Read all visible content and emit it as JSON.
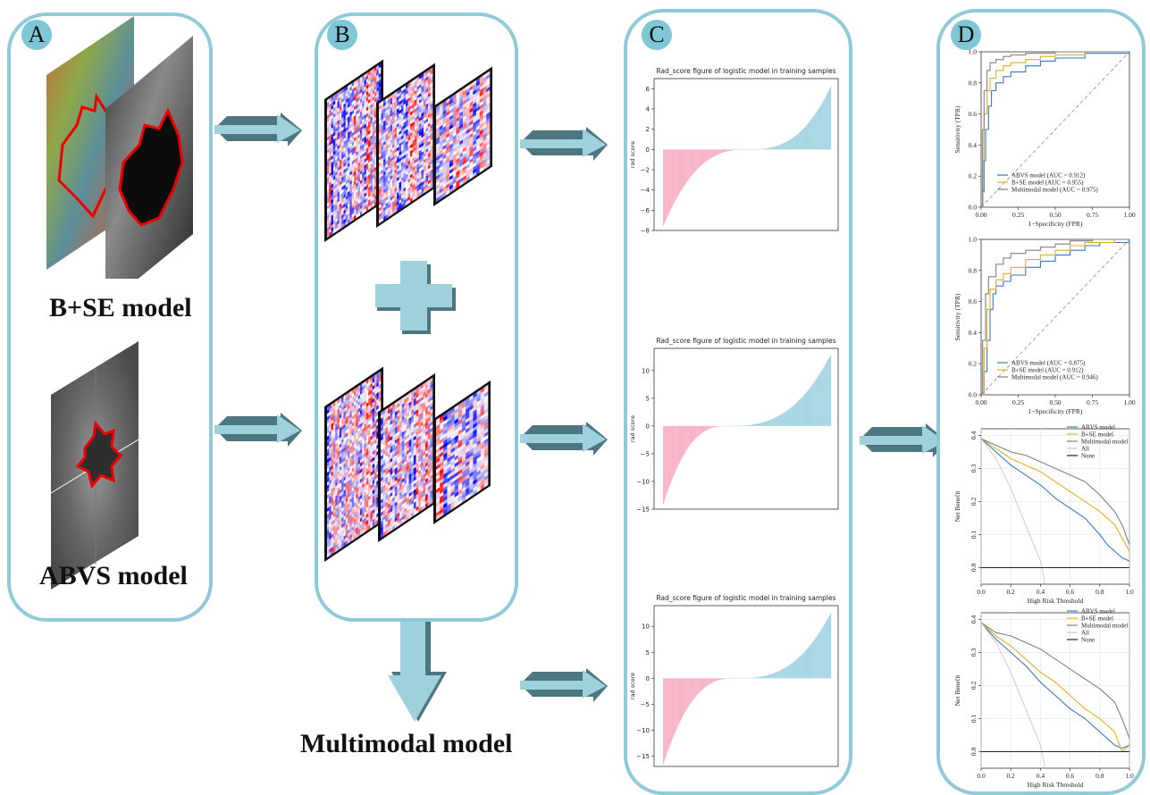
{
  "panels": {
    "a": {
      "badge": "A",
      "label_top": "B+SE model",
      "label_bottom": "ABVS model"
    },
    "b": {
      "badge": "B",
      "output_label": "Multimodal model"
    },
    "c": {
      "badge": "C"
    },
    "d": {
      "badge": "D"
    }
  },
  "colors": {
    "panel_border": "#8fcad8",
    "badge_fill": "#7fc6d6",
    "arrow_top": "#9fd1dc",
    "arrow_side": "#4d7780",
    "bar_negative": "#f7b6c8",
    "bar_positive": "#a9d6e5",
    "abvs": "#3b78c4",
    "bse": "#e0b020",
    "multimodal": "#808080",
    "all": "#c8c8c8",
    "none": "#222222"
  },
  "chart_data": [
    {
      "type": "bar",
      "title": "Rad_score figure of logistic model in training samples",
      "ylabel": "rad score",
      "yticks": [
        -8,
        -6,
        -4,
        -2,
        0,
        2,
        4,
        6
      ],
      "ylim": [
        -8,
        7
      ],
      "min": -7.5,
      "max": 6.2,
      "crossing_fraction": 0.5
    },
    {
      "type": "bar",
      "title": "Rad_score figure of logistic model in training samples",
      "ylabel": "rad score",
      "yticks": [
        -15,
        -10,
        -5,
        0,
        5,
        10
      ],
      "ylim": [
        -15,
        14
      ],
      "min": -14,
      "max": 12.8,
      "crossing_fraction": 0.38
    },
    {
      "type": "bar",
      "title": "Rad_score figure of logistic model in training samples",
      "ylabel": "rad score",
      "yticks": [
        -15,
        -10,
        -5,
        0,
        5,
        10
      ],
      "ylim": [
        -17,
        14
      ],
      "min": -16.5,
      "max": 12.5,
      "crossing_fraction": 0.43
    },
    {
      "type": "line",
      "xlabel": "1−Specificity (FPR)",
      "ylabel": "Sensitivity (TPR)",
      "xticks": [
        "0.00",
        "0.25",
        "0.50",
        "0.75",
        "1.00"
      ],
      "yticks": [
        "0.0",
        "0.2",
        "0.4",
        "0.6",
        "0.8",
        "1.0"
      ],
      "xlim": [
        0,
        1
      ],
      "ylim": [
        0,
        1
      ],
      "legend": [
        "ABVS model (AUC = 0.912)",
        "B+SE model (AUC = 0.955)",
        "Multimodal model (AUC = 0.975)"
      ],
      "series": [
        {
          "name": "ABVS model (AUC = 0.912)",
          "x": [
            0,
            0.01,
            0.02,
            0.03,
            0.05,
            0.07,
            0.1,
            0.15,
            0.2,
            0.3,
            0.4,
            0.5,
            0.7,
            1.0
          ],
          "y": [
            0,
            0.1,
            0.3,
            0.5,
            0.65,
            0.75,
            0.8,
            0.84,
            0.87,
            0.91,
            0.94,
            0.96,
            0.99,
            1.0
          ]
        },
        {
          "name": "B+SE model (AUC = 0.955)",
          "x": [
            0,
            0.01,
            0.02,
            0.04,
            0.06,
            0.1,
            0.15,
            0.2,
            0.3,
            0.4,
            0.5,
            0.7,
            1.0
          ],
          "y": [
            0,
            0.3,
            0.6,
            0.75,
            0.83,
            0.88,
            0.91,
            0.93,
            0.95,
            0.97,
            0.98,
            1.0,
            1.0
          ]
        },
        {
          "name": "Multimodal model (AUC = 0.975)",
          "x": [
            0,
            0.01,
            0.02,
            0.04,
            0.06,
            0.1,
            0.15,
            0.2,
            0.3,
            0.5,
            1.0
          ],
          "y": [
            0,
            0.5,
            0.75,
            0.88,
            0.93,
            0.95,
            0.97,
            0.98,
            0.99,
            1.0,
            1.0
          ]
        }
      ]
    },
    {
      "type": "line",
      "xlabel": "1−Specificity (FPR)",
      "ylabel": "Sensitivity (TPR)",
      "xticks": [
        "0.00",
        "0.25",
        "0.50",
        "0.75",
        "1.00"
      ],
      "yticks": [
        "0.0",
        "0.2",
        "0.4",
        "0.6",
        "0.8",
        "1.0"
      ],
      "xlim": [
        0,
        1
      ],
      "ylim": [
        0,
        1
      ],
      "legend": [
        "ABVS model (AUC = 0.875)",
        "B+SE model (AUC = 0.912)",
        "Multimodal model (AUC = 0.946)"
      ],
      "series": [
        {
          "name": "ABVS model (AUC = 0.875)",
          "x": [
            0,
            0.02,
            0.04,
            0.06,
            0.08,
            0.1,
            0.15,
            0.2,
            0.3,
            0.4,
            0.5,
            0.6,
            0.7,
            0.8,
            1.0
          ],
          "y": [
            0,
            0.15,
            0.35,
            0.55,
            0.65,
            0.7,
            0.73,
            0.77,
            0.82,
            0.86,
            0.9,
            0.93,
            0.96,
            0.98,
            1.0
          ]
        },
        {
          "name": "B+SE model (AUC = 0.912)",
          "x": [
            0,
            0.02,
            0.04,
            0.06,
            0.1,
            0.15,
            0.2,
            0.3,
            0.4,
            0.5,
            0.6,
            0.7,
            0.9,
            1.0
          ],
          "y": [
            0,
            0.3,
            0.55,
            0.68,
            0.74,
            0.78,
            0.82,
            0.87,
            0.9,
            0.93,
            0.96,
            0.98,
            1.0,
            1.0
          ]
        },
        {
          "name": "Multimodal model (AUC = 0.946)",
          "x": [
            0,
            0.01,
            0.03,
            0.05,
            0.1,
            0.15,
            0.2,
            0.3,
            0.4,
            0.5,
            0.6,
            0.75,
            1.0
          ],
          "y": [
            0,
            0.35,
            0.65,
            0.76,
            0.84,
            0.88,
            0.91,
            0.93,
            0.95,
            0.97,
            0.99,
            1.0,
            1.0
          ]
        }
      ]
    },
    {
      "type": "line",
      "xlabel": "High Risk Threshold",
      "ylabel": "Net Benefit",
      "xticks": [
        "0.0",
        "0.2",
        "0.4",
        "0.6",
        "0.8",
        "1.0"
      ],
      "yticks": [
        "0.0",
        "0.1",
        "0.2",
        "0.3",
        "0.4"
      ],
      "xlim": [
        0,
        1
      ],
      "ylim": [
        -0.05,
        0.42
      ],
      "legend": [
        "ABVS model",
        "B+SE model",
        "Multimodal model",
        "All",
        "None"
      ],
      "series": [
        {
          "name": "ABVS model",
          "x": [
            0,
            0.1,
            0.2,
            0.3,
            0.4,
            0.5,
            0.6,
            0.7,
            0.8,
            0.85,
            0.9,
            0.95,
            1.0
          ],
          "y": [
            0.39,
            0.35,
            0.31,
            0.28,
            0.25,
            0.21,
            0.18,
            0.15,
            0.1,
            0.07,
            0.05,
            0.03,
            0.02
          ]
        },
        {
          "name": "B+SE model",
          "x": [
            0,
            0.1,
            0.2,
            0.3,
            0.4,
            0.5,
            0.6,
            0.7,
            0.8,
            0.9,
            0.95,
            1.0
          ],
          "y": [
            0.39,
            0.36,
            0.33,
            0.31,
            0.29,
            0.26,
            0.23,
            0.2,
            0.17,
            0.13,
            0.09,
            0.05
          ]
        },
        {
          "name": "Multimodal model",
          "x": [
            0,
            0.1,
            0.2,
            0.3,
            0.4,
            0.5,
            0.6,
            0.7,
            0.8,
            0.9,
            0.95,
            1.0
          ],
          "y": [
            0.39,
            0.37,
            0.35,
            0.34,
            0.32,
            0.3,
            0.28,
            0.26,
            0.22,
            0.17,
            0.13,
            0.07
          ]
        },
        {
          "name": "All",
          "x": [
            0,
            0.1,
            0.2,
            0.3,
            0.4,
            0.43
          ],
          "y": [
            0.39,
            0.33,
            0.24,
            0.13,
            0.02,
            -0.05
          ]
        },
        {
          "name": "None",
          "x": [
            0,
            1
          ],
          "y": [
            0,
            0
          ]
        }
      ]
    },
    {
      "type": "line",
      "xlabel": "High Risk Threshold",
      "ylabel": "Net Benefit",
      "xticks": [
        "0.0",
        "0.2",
        "0.4",
        "0.6",
        "0.8",
        "1.0"
      ],
      "yticks": [
        "0.0",
        "0.1",
        "0.2",
        "0.3",
        "0.4"
      ],
      "xlim": [
        0,
        1
      ],
      "ylim": [
        -0.05,
        0.42
      ],
      "legend": [
        "ABVS model",
        "B+SE model",
        "Multimodal model",
        "All",
        "None"
      ],
      "series": [
        {
          "name": "ABVS model",
          "x": [
            0,
            0.1,
            0.2,
            0.3,
            0.4,
            0.5,
            0.6,
            0.7,
            0.8,
            0.85,
            0.9,
            0.95,
            1.0
          ],
          "y": [
            0.39,
            0.34,
            0.3,
            0.26,
            0.21,
            0.17,
            0.13,
            0.1,
            0.06,
            0.04,
            0.02,
            0.01,
            0.02
          ]
        },
        {
          "name": "B+SE model",
          "x": [
            0,
            0.1,
            0.2,
            0.3,
            0.4,
            0.5,
            0.6,
            0.7,
            0.8,
            0.9,
            0.95,
            1.0
          ],
          "y": [
            0.39,
            0.35,
            0.32,
            0.28,
            0.24,
            0.21,
            0.17,
            0.13,
            0.1,
            0.06,
            0.0,
            0.02
          ]
        },
        {
          "name": "Multimodal model",
          "x": [
            0,
            0.1,
            0.2,
            0.3,
            0.4,
            0.5,
            0.6,
            0.7,
            0.8,
            0.9,
            0.95,
            1.0
          ],
          "y": [
            0.39,
            0.36,
            0.35,
            0.33,
            0.31,
            0.28,
            0.25,
            0.22,
            0.19,
            0.15,
            0.1,
            0.04
          ]
        },
        {
          "name": "All",
          "x": [
            0,
            0.1,
            0.2,
            0.3,
            0.4,
            0.43
          ],
          "y": [
            0.39,
            0.33,
            0.24,
            0.13,
            0.02,
            -0.05
          ]
        },
        {
          "name": "None",
          "x": [
            0,
            1
          ],
          "y": [
            0,
            0
          ]
        }
      ]
    }
  ]
}
